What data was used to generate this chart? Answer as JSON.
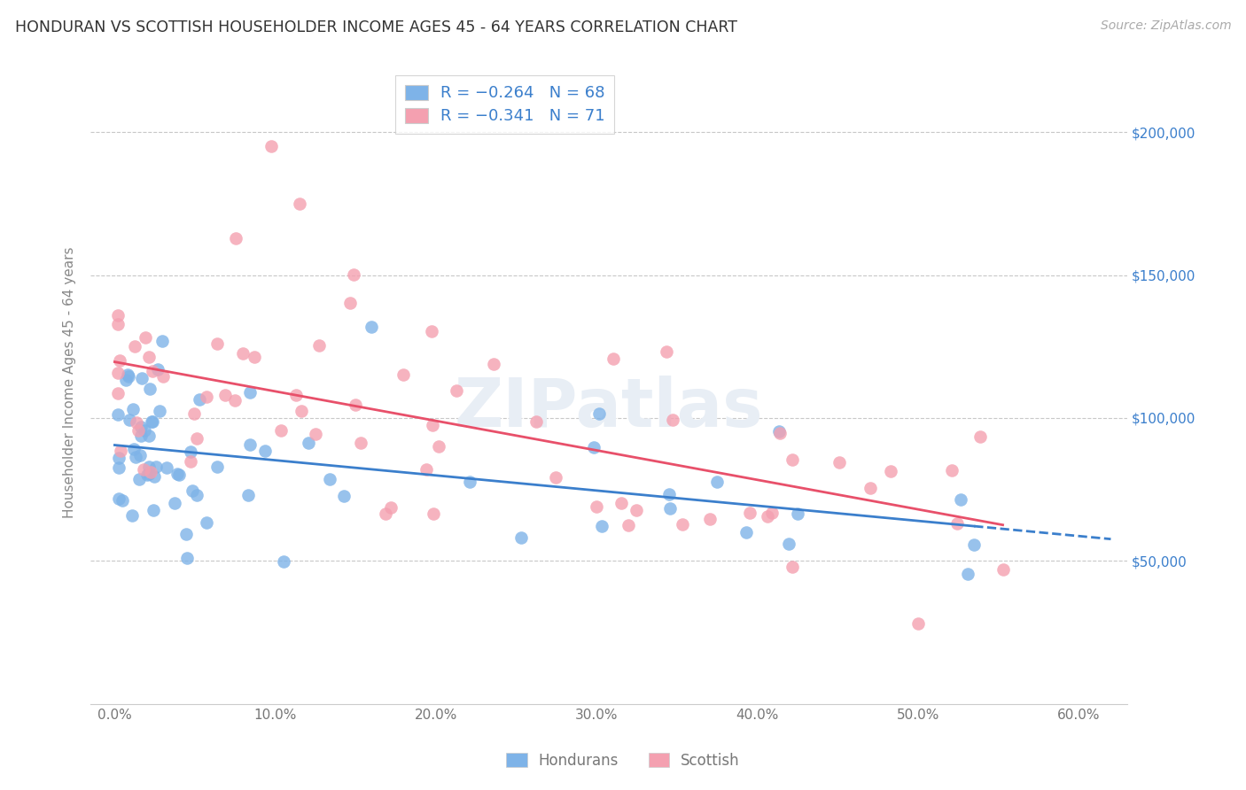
{
  "title": "HONDURAN VS SCOTTISH HOUSEHOLDER INCOME AGES 45 - 64 YEARS CORRELATION CHART",
  "source": "Source: ZipAtlas.com",
  "ylabel": "Householder Income Ages 45 - 64 years",
  "xlabel_ticks": [
    "0.0%",
    "10.0%",
    "20.0%",
    "30.0%",
    "40.0%",
    "50.0%",
    "60.0%"
  ],
  "xlabel_vals": [
    0.0,
    10.0,
    20.0,
    30.0,
    40.0,
    50.0,
    60.0
  ],
  "ytick_vals": [
    0,
    50000,
    100000,
    150000,
    200000
  ],
  "ytick_labels": [
    "",
    "$50,000",
    "$100,000",
    "$150,000",
    "$200,000"
  ],
  "xlim": [
    -1.5,
    63
  ],
  "ylim": [
    0,
    225000
  ],
  "honduran_color": "#7EB3E8",
  "scottish_color": "#F4A0B0",
  "honduran_line_color": "#3B7FCC",
  "scottish_line_color": "#E8506A",
  "legend_color": "#3B7FCC",
  "background_color": "#FFFFFF",
  "grid_color": "#C8C8C8",
  "title_color": "#333333",
  "watermark_color": "#E8EEF5",
  "source_color": "#AAAAAA",
  "axis_label_color": "#888888",
  "tick_label_color": "#777777"
}
